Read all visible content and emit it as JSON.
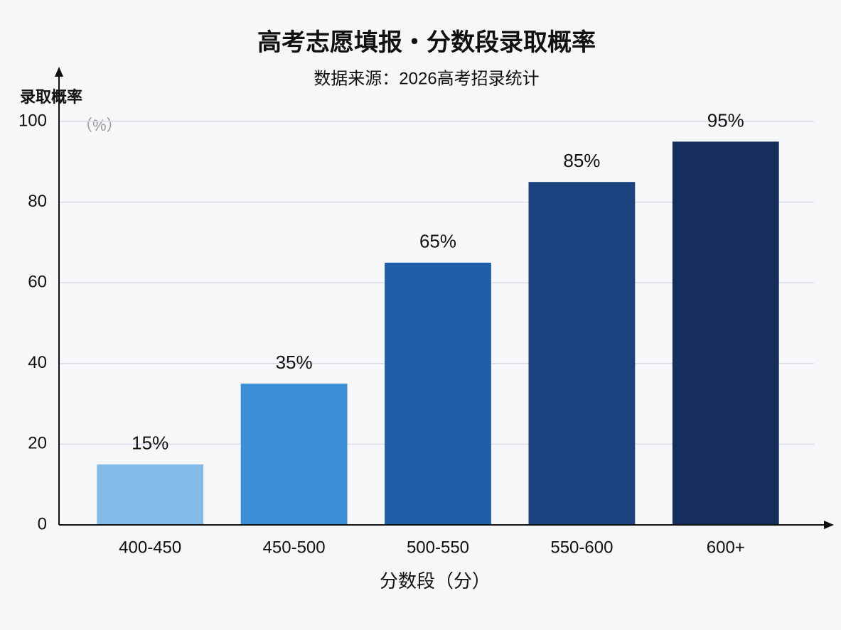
{
  "chart_data": {
    "type": "bar",
    "title": "高考志愿填报・分数段录取概率",
    "subtitle": "数据来源：2026高考招录统计",
    "y_label": "录取概率",
    "y_unit": "（%）",
    "x_label": "分数段（分）",
    "categories": [
      "400-450",
      "450-500",
      "500-550",
      "550-600",
      "600+"
    ],
    "values": [
      15,
      35,
      65,
      85,
      95
    ],
    "value_labels": [
      "15%",
      "35%",
      "65%",
      "85%",
      "95%"
    ],
    "colors": [
      "#84bce9",
      "#3a8ed5",
      "#1e5fa8",
      "#1b437f",
      "#162e5b"
    ],
    "ylim": [
      0,
      100
    ],
    "yticks": [
      0,
      20,
      40,
      60,
      80,
      100
    ],
    "grid": true
  }
}
